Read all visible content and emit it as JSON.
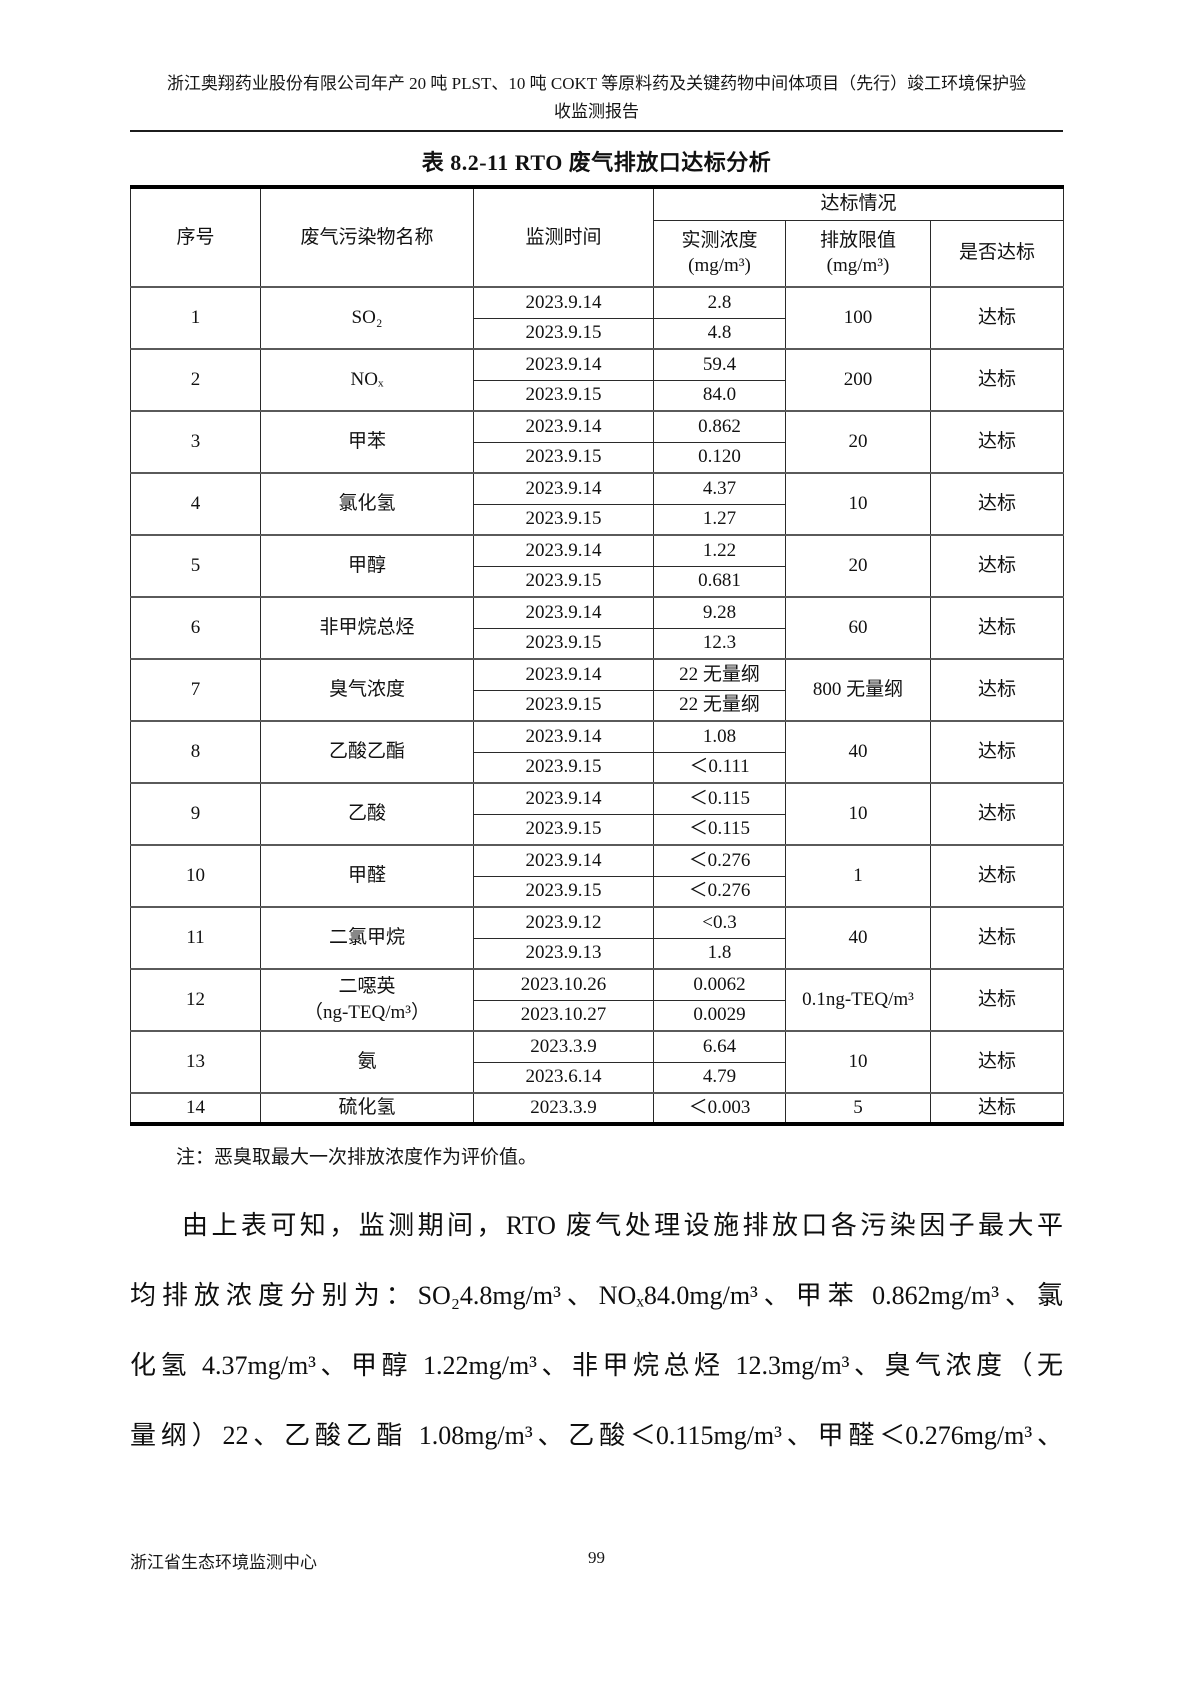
{
  "page": {
    "header_line1": "浙江奥翔药业股份有限公司年产 20 吨 PLST、10 吨 COKT 等原料药及关键药物中间体项目（先行）竣工环境保护验",
    "header_line2": "收监测报告",
    "footer_org": "浙江省生态环境监测中心",
    "page_number": "99"
  },
  "table": {
    "title": "表 8.2-11 RTO 废气排放口达标分析",
    "headers": {
      "col_no": "序号",
      "col_pollutant": "废气污染物名称",
      "col_time": "监测时间",
      "group_compliance": "达标情况",
      "col_measured_line1": "实测浓度",
      "col_measured_line2": "(mg/m³)",
      "col_limit_line1": "排放限值",
      "col_limit_line2": "(mg/m³)",
      "col_pass": "是否达标"
    },
    "rows": [
      {
        "no": "1",
        "name": "SO₂",
        "entries": [
          {
            "time": "2023.9.14",
            "value": "2.8"
          },
          {
            "time": "2023.9.15",
            "value": "4.8"
          }
        ],
        "limit": "100",
        "pass": "达标"
      },
      {
        "no": "2",
        "name": "NOₓ",
        "entries": [
          {
            "time": "2023.9.14",
            "value": "59.4"
          },
          {
            "time": "2023.9.15",
            "value": "84.0"
          }
        ],
        "limit": "200",
        "pass": "达标"
      },
      {
        "no": "3",
        "name": "甲苯",
        "entries": [
          {
            "time": "2023.9.14",
            "value": "0.862"
          },
          {
            "time": "2023.9.15",
            "value": "0.120"
          }
        ],
        "limit": "20",
        "pass": "达标"
      },
      {
        "no": "4",
        "name": "氯化氢",
        "entries": [
          {
            "time": "2023.9.14",
            "value": "4.37"
          },
          {
            "time": "2023.9.15",
            "value": "1.27"
          }
        ],
        "limit": "10",
        "pass": "达标"
      },
      {
        "no": "5",
        "name": "甲醇",
        "entries": [
          {
            "time": "2023.9.14",
            "value": "1.22"
          },
          {
            "time": "2023.9.15",
            "value": "0.681"
          }
        ],
        "limit": "20",
        "pass": "达标"
      },
      {
        "no": "6",
        "name": "非甲烷总烃",
        "entries": [
          {
            "time": "2023.9.14",
            "value": "9.28"
          },
          {
            "time": "2023.9.15",
            "value": "12.3"
          }
        ],
        "limit": "60",
        "pass": "达标"
      },
      {
        "no": "7",
        "name": "臭气浓度",
        "entries": [
          {
            "time": "2023.9.14",
            "value": "22 无量纲"
          },
          {
            "time": "2023.9.15",
            "value": "22 无量纲"
          }
        ],
        "limit": "800 无量纲",
        "pass": "达标"
      },
      {
        "no": "8",
        "name": "乙酸乙酯",
        "entries": [
          {
            "time": "2023.9.14",
            "value": "1.08"
          },
          {
            "time": "2023.9.15",
            "value": "＜0.111"
          }
        ],
        "limit": "40",
        "pass": "达标"
      },
      {
        "no": "9",
        "name": "乙酸",
        "entries": [
          {
            "time": "2023.9.14",
            "value": "＜0.115"
          },
          {
            "time": "2023.9.15",
            "value": "＜0.115"
          }
        ],
        "limit": "10",
        "pass": "达标"
      },
      {
        "no": "10",
        "name": "甲醛",
        "entries": [
          {
            "time": "2023.9.14",
            "value": "＜0.276"
          },
          {
            "time": "2023.9.15",
            "value": "＜0.276"
          }
        ],
        "limit": "1",
        "pass": "达标"
      },
      {
        "no": "11",
        "name": "二氯甲烷",
        "entries": [
          {
            "time": "2023.9.12",
            "value": "<0.3"
          },
          {
            "time": "2023.9.13",
            "value": "1.8"
          }
        ],
        "limit": "40",
        "pass": "达标"
      },
      {
        "no": "12",
        "name": "二噁英",
        "name2": "（ng-TEQ/m³）",
        "entries": [
          {
            "time": "2023.10.26",
            "value": "0.0062"
          },
          {
            "time": "2023.10.27",
            "value": "0.0029"
          }
        ],
        "limit": "0.1ng-TEQ/m³",
        "pass": "达标"
      },
      {
        "no": "13",
        "name": "氨",
        "entries": [
          {
            "time": "2023.3.9",
            "value": "6.64"
          },
          {
            "time": "2023.6.14",
            "value": "4.79"
          }
        ],
        "limit": "10",
        "pass": "达标"
      },
      {
        "no": "14",
        "name": "硫化氢",
        "entries": [
          {
            "time": "2023.3.9",
            "value": "＜0.003"
          }
        ],
        "limit": "5",
        "pass": "达标"
      }
    ],
    "note": "注：恶臭取最大一次排放浓度作为评价值。"
  },
  "paragraph": {
    "lines": [
      "由上表可知，监测期间，RTO 废气处理设施排放口各污染因子最大平",
      "均排放浓度分别为：SO₂4.8mg/m³、NOₓ84.0mg/m³、甲苯 0.862mg/m³、氯",
      "化氢 4.37mg/m³、甲醇 1.22mg/m³、非甲烷总烃 12.3mg/m³、臭气浓度（无",
      "量纲）22、乙酸乙酯 1.08mg/m³、乙酸＜0.115mg/m³、甲醛＜0.276mg/m³、"
    ]
  }
}
